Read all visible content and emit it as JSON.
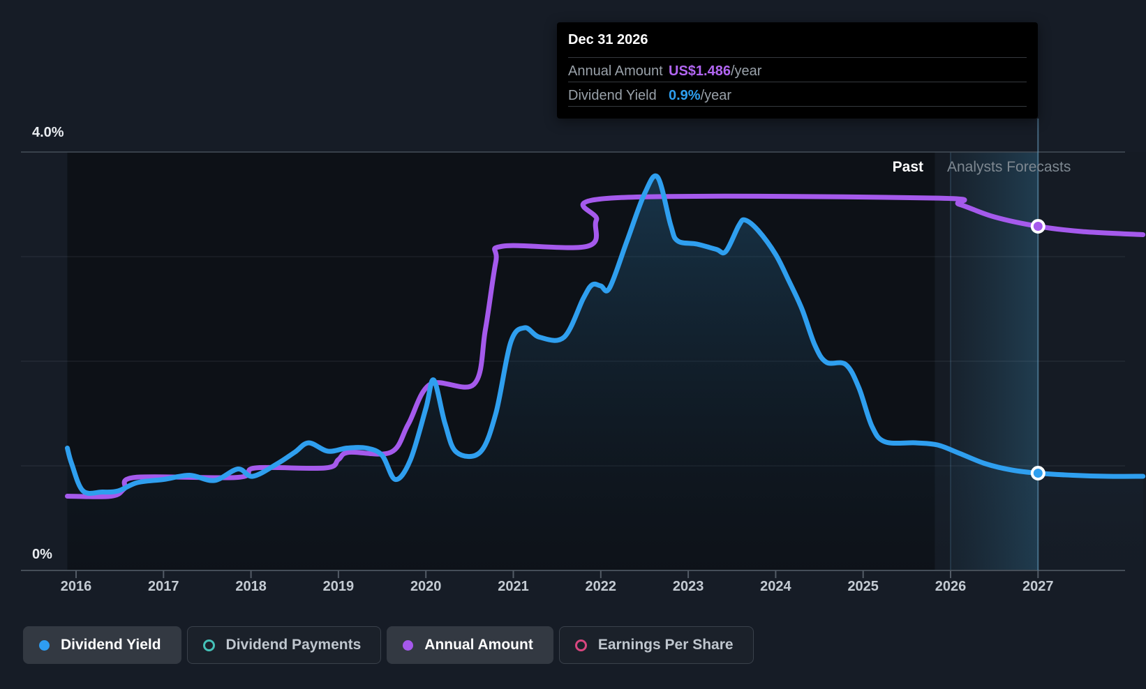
{
  "labels": {
    "past": "Past",
    "forecast": "Analysts Forecasts",
    "y_top": "4.0%",
    "y_bottom": "0%"
  },
  "tooltip": {
    "title": "Dec 31 2026",
    "rows": [
      {
        "label": "Annual Amount",
        "value": "US$1.486",
        "suffix": "/year",
        "value_color": "#B266F2"
      },
      {
        "label": "Dividend Yield",
        "value": "0.9%",
        "suffix": "/year",
        "value_color": "#2E9FF0"
      }
    ]
  },
  "legend": [
    {
      "label": "Dividend Yield",
      "active": true,
      "shape": "dot",
      "color": "#2E9DF2"
    },
    {
      "label": "Dividend Payments",
      "active": false,
      "shape": "ring",
      "color": "#45C1B8"
    },
    {
      "label": "Annual Amount",
      "active": true,
      "shape": "dot",
      "color": "#A558EC"
    },
    {
      "label": "Earnings Per Share",
      "active": false,
      "shape": "ring",
      "color": "#D8467F"
    }
  ],
  "colors": {
    "page_bg": "#161C26",
    "past_plot_bg": "#0D1117",
    "forecast_plot_bg": "#151B24",
    "grid_minor": "rgba(190,205,220,0.12)",
    "grid_top": "#454E58",
    "axis_line": "#454E58",
    "tick": "#535B66",
    "band_from": "rgba(45,95,125,0.10)",
    "band_to": "rgba(50,115,150,0.38)",
    "band_edge_line": "rgba(90,145,180,0.30)",
    "hover_line": "rgba(110,165,200,0.55)",
    "area_top": "rgba(47,130,185,0.34)",
    "area_mid": "rgba(35,85,120,0.18)",
    "area_bottom": "rgba(25,45,65,0.05)",
    "blue_line": "#2F9FEF",
    "purple_line": "#A55AEC",
    "marker_ring": "#FFFFFF"
  },
  "chart_data": {
    "type": "line",
    "title": "Dividend yield history and forecast (hover at Dec 31 2026)",
    "x_ticks": [
      2016,
      2017,
      2018,
      2019,
      2020,
      2021,
      2022,
      2023,
      2024,
      2025,
      2026,
      2027
    ],
    "x_range": [
      2015.9,
      2028.2
    ],
    "y_axis": {
      "min": 0,
      "max": 4,
      "unit": "%",
      "shown_labels": [
        "4.0%",
        "0%"
      ],
      "gridlines_at": [
        1,
        2,
        3,
        4
      ]
    },
    "past_forecast_boundary": 2025.82,
    "highlight_band": [
      2026.0,
      2027.0
    ],
    "hover_x": 2027.0,
    "legend_position": "bottom",
    "series": [
      {
        "name": "Dividend Yield",
        "unit": "%",
        "style": "line+area",
        "marker": {
          "x": 2027.0,
          "y": 0.93,
          "display": "0.9%/year"
        },
        "points": [
          [
            2015.9,
            1.17
          ],
          [
            2015.95,
            1.02
          ],
          [
            2016.08,
            0.76
          ],
          [
            2016.3,
            0.75
          ],
          [
            2016.48,
            0.76
          ],
          [
            2016.7,
            0.84
          ],
          [
            2017.0,
            0.87
          ],
          [
            2017.3,
            0.91
          ],
          [
            2017.58,
            0.86
          ],
          [
            2017.85,
            0.97
          ],
          [
            2018.02,
            0.9
          ],
          [
            2018.3,
            1.02
          ],
          [
            2018.5,
            1.13
          ],
          [
            2018.66,
            1.22
          ],
          [
            2018.88,
            1.14
          ],
          [
            2019.1,
            1.17
          ],
          [
            2019.32,
            1.17
          ],
          [
            2019.5,
            1.1
          ],
          [
            2019.65,
            0.87
          ],
          [
            2019.82,
            1.05
          ],
          [
            2020.0,
            1.55
          ],
          [
            2020.09,
            1.82
          ],
          [
            2020.22,
            1.4
          ],
          [
            2020.35,
            1.13
          ],
          [
            2020.62,
            1.13
          ],
          [
            2020.8,
            1.5
          ],
          [
            2020.97,
            2.18
          ],
          [
            2021.13,
            2.32
          ],
          [
            2021.3,
            2.23
          ],
          [
            2021.58,
            2.23
          ],
          [
            2021.8,
            2.6
          ],
          [
            2021.9,
            2.73
          ],
          [
            2022.0,
            2.72
          ],
          [
            2022.1,
            2.7
          ],
          [
            2022.3,
            3.15
          ],
          [
            2022.5,
            3.6
          ],
          [
            2022.65,
            3.76
          ],
          [
            2022.8,
            3.3
          ],
          [
            2022.88,
            3.15
          ],
          [
            2023.1,
            3.12
          ],
          [
            2023.32,
            3.07
          ],
          [
            2023.43,
            3.05
          ],
          [
            2023.58,
            3.3
          ],
          [
            2023.65,
            3.35
          ],
          [
            2023.8,
            3.25
          ],
          [
            2024.0,
            3.02
          ],
          [
            2024.15,
            2.77
          ],
          [
            2024.3,
            2.5
          ],
          [
            2024.45,
            2.15
          ],
          [
            2024.58,
            1.99
          ],
          [
            2024.8,
            1.97
          ],
          [
            2024.95,
            1.75
          ],
          [
            2025.1,
            1.38
          ],
          [
            2025.25,
            1.23
          ],
          [
            2025.6,
            1.22
          ],
          [
            2025.85,
            1.2
          ],
          [
            2026.1,
            1.12
          ],
          [
            2026.4,
            1.02
          ],
          [
            2026.7,
            0.96
          ],
          [
            2027.0,
            0.93
          ],
          [
            2027.4,
            0.91
          ],
          [
            2027.8,
            0.9
          ],
          [
            2028.2,
            0.9
          ]
        ]
      },
      {
        "name": "Annual Amount",
        "unit": "plotted on hidden US$ scale (value at hover: US$1.486/year); y given in %-axis equivalents",
        "style": "line",
        "marker": {
          "x": 2027.0,
          "y": 3.29,
          "display": "US$1.486/year"
        },
        "points": [
          [
            2015.9,
            0.71
          ],
          [
            2016.4,
            0.71
          ],
          [
            2016.55,
            0.78
          ],
          [
            2016.68,
            0.89
          ],
          [
            2017.85,
            0.89
          ],
          [
            2018.05,
            0.98
          ],
          [
            2018.85,
            0.98
          ],
          [
            2019.0,
            1.06
          ],
          [
            2019.12,
            1.13
          ],
          [
            2019.6,
            1.13
          ],
          [
            2019.8,
            1.4
          ],
          [
            2020.05,
            1.78
          ],
          [
            2020.55,
            1.78
          ],
          [
            2020.68,
            2.3
          ],
          [
            2020.8,
            2.95
          ],
          [
            2020.88,
            3.1
          ],
          [
            2021.85,
            3.1
          ],
          [
            2021.95,
            3.35
          ],
          [
            2022.12,
            3.56
          ],
          [
            2025.8,
            3.56
          ],
          [
            2026.1,
            3.5
          ],
          [
            2026.5,
            3.38
          ],
          [
            2027.0,
            3.29
          ],
          [
            2027.5,
            3.24
          ],
          [
            2028.2,
            3.21
          ]
        ]
      }
    ],
    "inactive_series": [
      "Dividend Payments",
      "Earnings Per Share"
    ]
  }
}
